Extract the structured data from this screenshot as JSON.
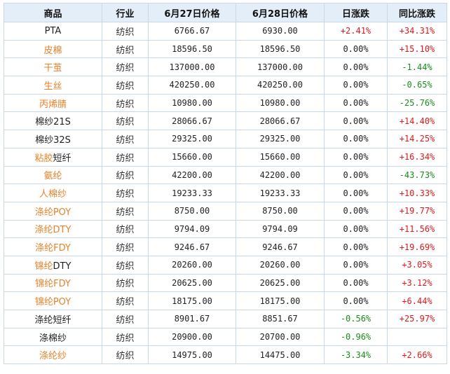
{
  "headers": [
    "商品",
    "行业",
    "6月27日价格",
    "6月28日价格",
    "日涨跌",
    "同比涨跌"
  ],
  "colors": {
    "header_bg": "#e3eef9",
    "orange": "#e8822a",
    "pos": "#e0191d",
    "neg": "#1a8c1a",
    "border": "#c9d8e8"
  },
  "rows": [
    {
      "name": "PTA",
      "style": "black",
      "industry": "纺织",
      "p1": "6766.67",
      "p2": "6930.00",
      "day": "+2.41%",
      "yoy": "+34.31%"
    },
    {
      "name": "皮棉",
      "style": "orange",
      "industry": "纺织",
      "p1": "18596.50",
      "p2": "18596.50",
      "day": "0.00%",
      "yoy": "+15.10%"
    },
    {
      "name": "干茧",
      "style": "orange",
      "industry": "纺织",
      "p1": "137000.00",
      "p2": "137000.00",
      "day": "0.00%",
      "yoy": "-1.44%"
    },
    {
      "name": "生丝",
      "style": "orange",
      "industry": "纺织",
      "p1": "420250.00",
      "p2": "420250.00",
      "day": "0.00%",
      "yoy": "-0.65%"
    },
    {
      "name": "丙烯腈",
      "style": "orange",
      "industry": "纺织",
      "p1": "10980.00",
      "p2": "10980.00",
      "day": "0.00%",
      "yoy": "-25.76%"
    },
    {
      "name": "棉纱21S",
      "style": "black",
      "industry": "纺织",
      "p1": "28066.67",
      "p2": "28066.67",
      "day": "0.00%",
      "yoy": "+14.40%"
    },
    {
      "name": "棉纱32S",
      "style": "black",
      "industry": "纺织",
      "p1": "29325.00",
      "p2": "29325.00",
      "day": "0.00%",
      "yoy": "+14.25%"
    },
    {
      "name": "粘胶短纤",
      "style": "mixed",
      "parts": [
        "粘胶",
        "短纤"
      ],
      "industry": "纺织",
      "p1": "15660.00",
      "p2": "15660.00",
      "day": "0.00%",
      "yoy": "+16.34%"
    },
    {
      "name": "氨纶",
      "style": "orange",
      "industry": "纺织",
      "p1": "42200.00",
      "p2": "42200.00",
      "day": "0.00%",
      "yoy": "-43.73%"
    },
    {
      "name": "人棉纱",
      "style": "orange",
      "industry": "纺织",
      "p1": "19233.33",
      "p2": "19233.33",
      "day": "0.00%",
      "yoy": "+10.33%"
    },
    {
      "name": "涤纶POY",
      "style": "orange",
      "industry": "纺织",
      "p1": "8750.00",
      "p2": "8750.00",
      "day": "0.00%",
      "yoy": "+19.77%"
    },
    {
      "name": "涤纶DTY",
      "style": "orange",
      "industry": "纺织",
      "p1": "9794.09",
      "p2": "9794.09",
      "day": "0.00%",
      "yoy": "+11.56%"
    },
    {
      "name": "涤纶FDY",
      "style": "orange",
      "industry": "纺织",
      "p1": "9246.67",
      "p2": "9246.67",
      "day": "0.00%",
      "yoy": "+19.69%"
    },
    {
      "name": "锦纶DTY",
      "style": "mixed",
      "parts": [
        "锦纶",
        "DTY"
      ],
      "industry": "纺织",
      "p1": "20260.00",
      "p2": "20260.00",
      "day": "0.00%",
      "yoy": "+3.05%"
    },
    {
      "name": "锦纶FDY",
      "style": "orange",
      "industry": "纺织",
      "p1": "20625.00",
      "p2": "20625.00",
      "day": "0.00%",
      "yoy": "+3.12%"
    },
    {
      "name": "锦纶POY",
      "style": "orange",
      "industry": "纺织",
      "p1": "18175.00",
      "p2": "18175.00",
      "day": "0.00%",
      "yoy": "+6.44%"
    },
    {
      "name": "涤纶短纤",
      "style": "black",
      "industry": "纺织",
      "p1": "8901.67",
      "p2": "8851.67",
      "day": "-0.56%",
      "yoy": "+25.97%"
    },
    {
      "name": "涤棉纱",
      "style": "black",
      "industry": "纺织",
      "p1": "20900.00",
      "p2": "20700.00",
      "day": "-0.96%",
      "yoy": ""
    },
    {
      "name": "涤纶纱",
      "style": "orange",
      "industry": "纺织",
      "p1": "14975.00",
      "p2": "14475.00",
      "day": "-3.34%",
      "yoy": "+2.66%"
    }
  ]
}
